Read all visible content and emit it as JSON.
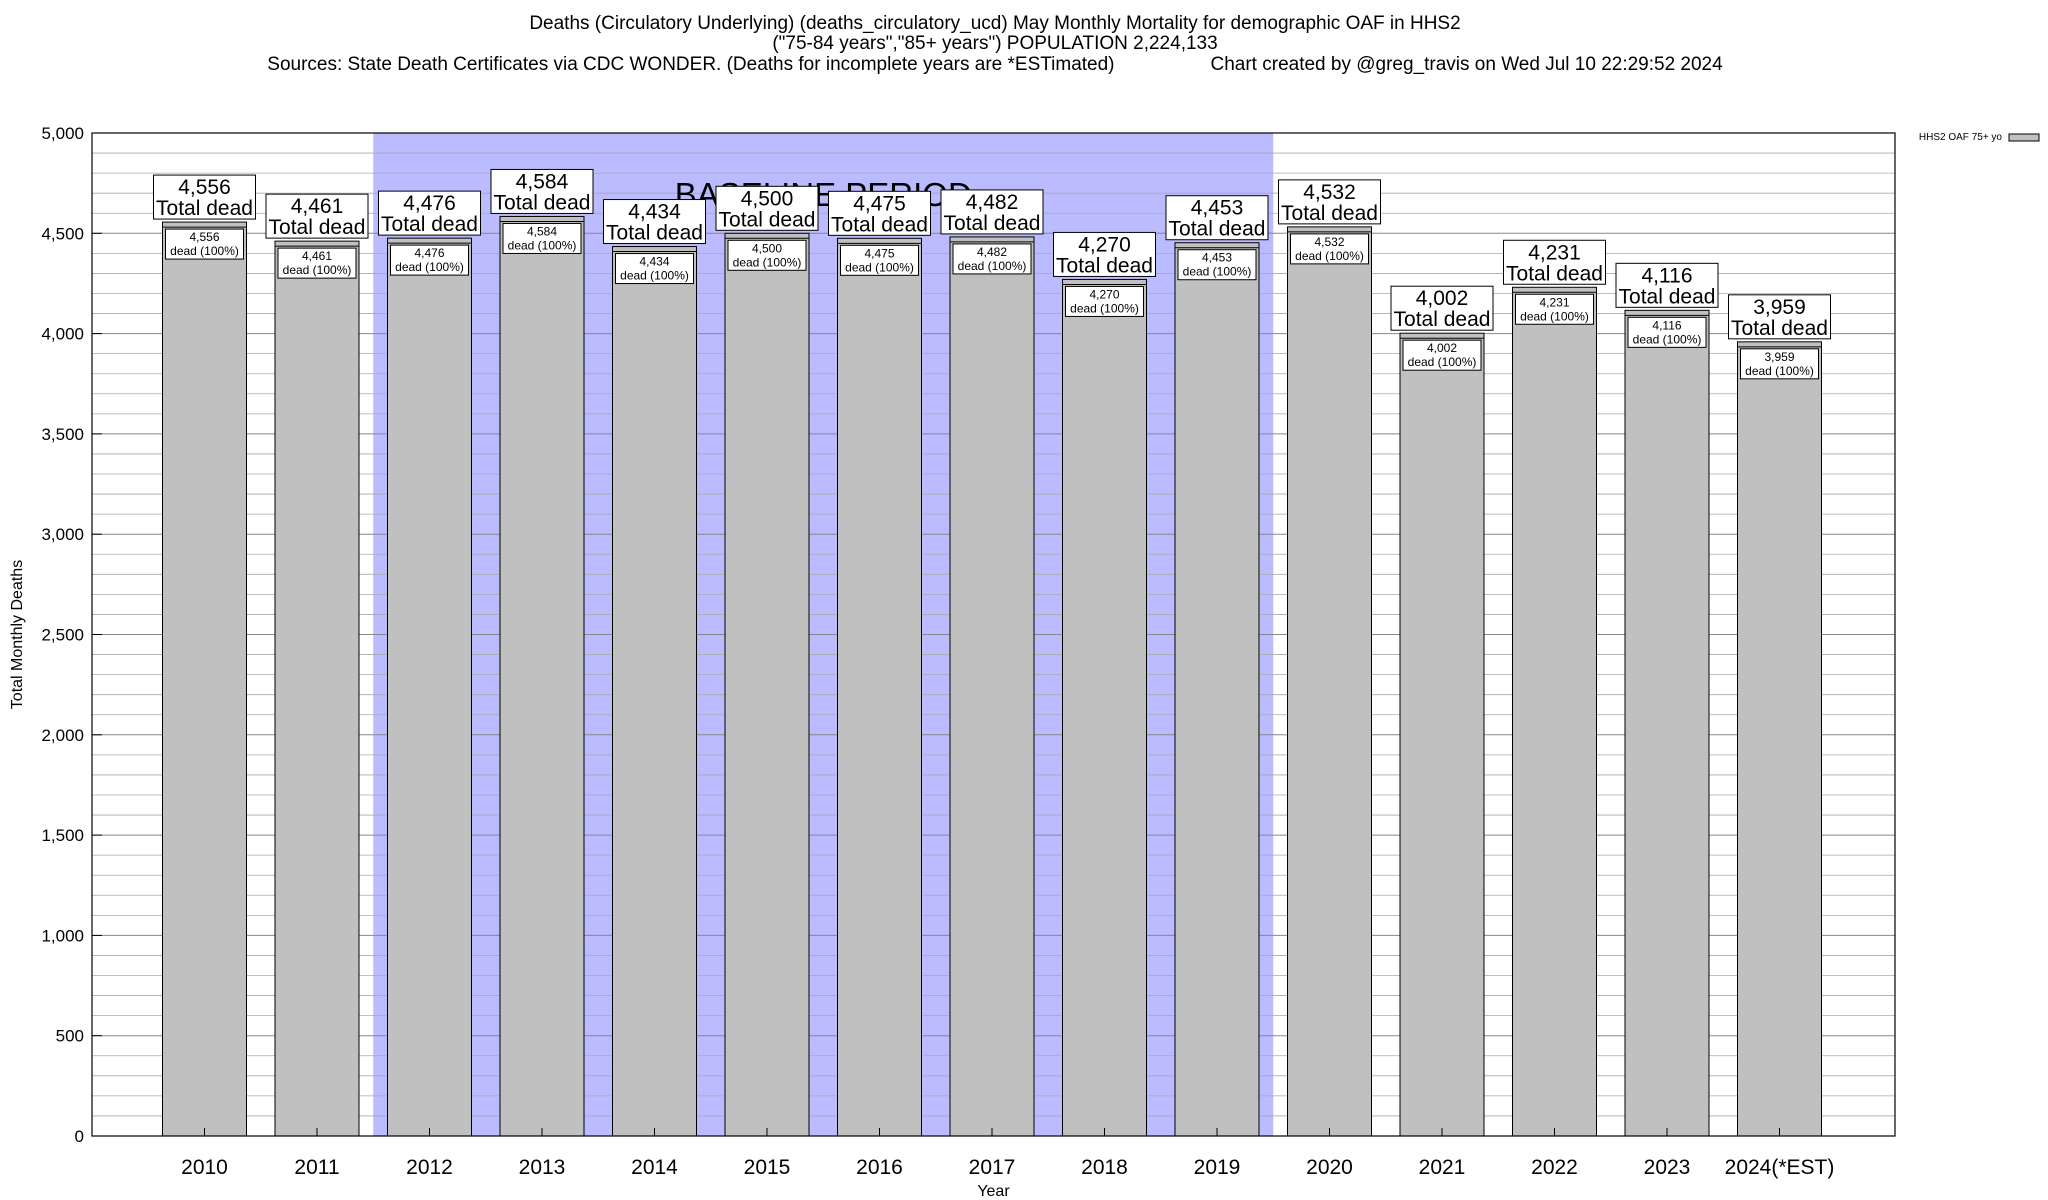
{
  "title": {
    "line1": "Deaths (Circulatory Underlying) (deaths_circulatory_ucd) May Monthly Mortality for demographic OAF in HHS2",
    "line2": "(\"75-84 years\",\"85+ years\") POPULATION 2,224,133",
    "sources": "Sources: State Death Certificates via CDC WONDER. (Deaths for incomplete years are *ESTimated)",
    "credit": "Chart created by @greg_travis on Wed Jul 10 22:29:52 2024"
  },
  "colors": {
    "bar_fill": "#c0c0c0",
    "baseline_fill": "#bbbbff",
    "grid": "#aaaaaa"
  },
  "chart_data": {
    "type": "bar",
    "title": "Deaths (Circulatory Underlying) (deaths_circulatory_ucd) May Monthly Mortality for demographic OAF in HHS2",
    "xlabel": "Year",
    "ylabel": "Total Monthly Deaths",
    "ylim": [
      0,
      5000
    ],
    "yticks": [
      0,
      500,
      1000,
      1500,
      2000,
      2500,
      3000,
      3500,
      4000,
      4500,
      5000
    ],
    "ytick_labels": [
      "0",
      "500",
      "1,000",
      "1,500",
      "2,000",
      "2,500",
      "3,000",
      "3,500",
      "4,000",
      "4,500",
      "5,000"
    ],
    "categories": [
      "2010",
      "2011",
      "2012",
      "2013",
      "2014",
      "2015",
      "2016",
      "2017",
      "2018",
      "2019",
      "2020",
      "2021",
      "2022",
      "2023",
      "2024(*EST)"
    ],
    "series": [
      {
        "name": "HHS2 OAF 75+ yo",
        "values": [
          4556,
          4461,
          4476,
          4584,
          4434,
          4500,
          4475,
          4482,
          4270,
          4453,
          4532,
          4002,
          4231,
          4116,
          3959
        ]
      }
    ],
    "value_labels": [
      "4,556",
      "4,461",
      "4,476",
      "4,584",
      "4,434",
      "4,500",
      "4,475",
      "4,482",
      "4,270",
      "4,453",
      "4,532",
      "4,002",
      "4,231",
      "4,116",
      "3,959"
    ],
    "total_suffix": "Total dead",
    "inner_suffix": "dead (100%)",
    "baseline": {
      "label": "BASELINE PERIOD",
      "from": "2012",
      "to": "2019"
    },
    "legend": {
      "label": "HHS2 OAF 75+ yo",
      "position": "top-right"
    },
    "grid": true
  }
}
